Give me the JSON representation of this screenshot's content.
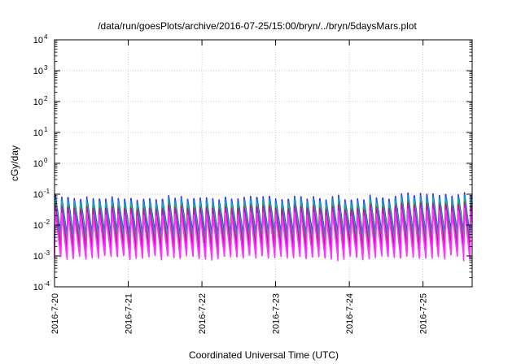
{
  "chart_data": {
    "type": "line",
    "title": "/data/run/goesPlots/archive/2016-07-25/15:00/bryn/../bryn/5daysMars.plot",
    "xlabel": "Coordinated Universal Time (UTC)",
    "ylabel": "cGy/day",
    "yscale": "log",
    "ylim": [
      0.0001,
      10000
    ],
    "y_ticks": [
      {
        "base": "10",
        "exp": "-4",
        "value": 0.0001
      },
      {
        "base": "10",
        "exp": "-3",
        "value": 0.001
      },
      {
        "base": "10",
        "exp": "-2",
        "value": 0.01
      },
      {
        "base": "10",
        "exp": "-1",
        "value": 0.1
      },
      {
        "base": "10",
        "exp": "0",
        "value": 1
      },
      {
        "base": "10",
        "exp": "1",
        "value": 10
      },
      {
        "base": "10",
        "exp": "2",
        "value": 100
      },
      {
        "base": "10",
        "exp": "3",
        "value": 1000
      },
      {
        "base": "10",
        "exp": "4",
        "value": 10000
      }
    ],
    "x_ticks": [
      "2016-7-20",
      "2016-7-21",
      "2016-7-22",
      "2016-7-23",
      "2016-7-24",
      "2016-7-25"
    ],
    "xlim": [
      "2016-07-20T00:00",
      "2016-07-25T16:00"
    ],
    "grid": true,
    "orbit_period_hours": 2.05,
    "series": [
      {
        "color": "#3333cc",
        "peak": 0.065,
        "trough": 0.0045
      },
      {
        "color": "#1f78ff",
        "peak": 0.055,
        "trough": 0.0035
      },
      {
        "color": "#00b7c2",
        "peak": 0.045,
        "trough": 0.0028
      },
      {
        "color": "#2aa84a",
        "peak": 0.038,
        "trough": 0.0022
      },
      {
        "color": "#b02060",
        "peak": 0.032,
        "trough": 0.0016
      },
      {
        "color": "#e000e0",
        "peak": 0.026,
        "trough": 0.0011
      },
      {
        "color": "#ff33ff",
        "peak": 0.02,
        "trough": 0.0008
      }
    ]
  }
}
